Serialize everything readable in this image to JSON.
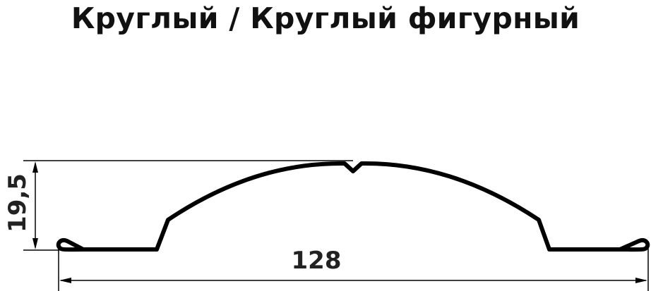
{
  "title": "Круглый / Круглый фигурный",
  "dimensions": {
    "width": "128",
    "height": "19,5"
  },
  "colors": {
    "line": "#000000",
    "text": "#222222"
  }
}
